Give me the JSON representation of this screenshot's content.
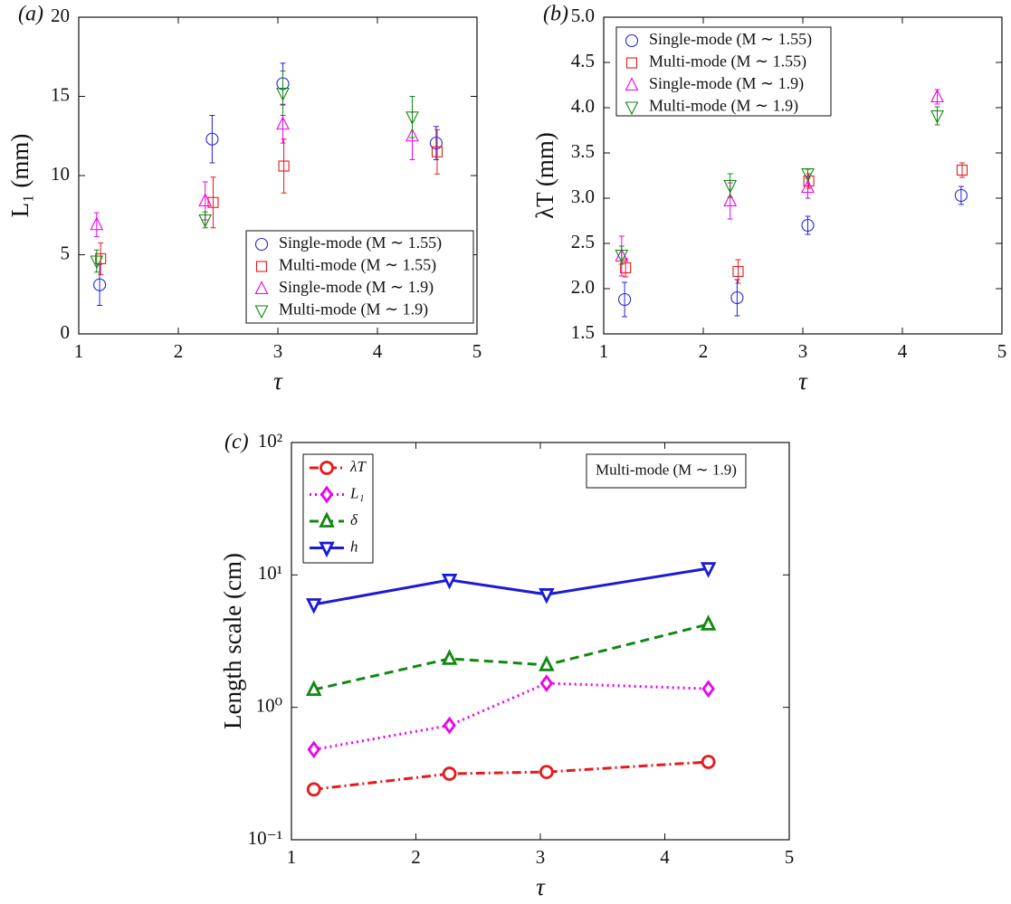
{
  "chart_data": [
    {
      "type": "scatter",
      "panel_label": "(a)",
      "xlabel": "τ",
      "ylabel": "L₁ (mm)",
      "xlim": [
        1,
        5
      ],
      "xticks": [
        1,
        2,
        3,
        4,
        5
      ],
      "ylim": [
        0,
        20
      ],
      "yticks": [
        0,
        5,
        10,
        15,
        20
      ],
      "legend": "lower right",
      "series": [
        {
          "name": "Single-mode (M ∼ 1.55)",
          "color": "#2222dd",
          "marker": "circle",
          "x": [
            1.21,
            2.34,
            3.05,
            4.59
          ],
          "values": [
            3.1,
            12.3,
            15.8,
            12.05
          ],
          "errors": [
            1.3,
            1.5,
            1.3,
            1.05
          ]
        },
        {
          "name": "Multi-mode (M ∼ 1.55)",
          "color": "#e8191c",
          "marker": "square",
          "x": [
            1.22,
            2.35,
            3.06,
            4.6
          ],
          "values": [
            4.75,
            8.3,
            10.6,
            11.5
          ],
          "errors": [
            1.0,
            1.6,
            1.7,
            1.4
          ]
        },
        {
          "name": "Single-mode (M ∼ 1.9)",
          "color": "#ee00ee",
          "marker": "triangle-up",
          "x": [
            1.18,
            2.27,
            3.05,
            4.35
          ],
          "values": [
            6.9,
            8.4,
            13.25,
            12.5
          ],
          "errors": [
            0.75,
            1.2,
            1.2,
            1.5
          ]
        },
        {
          "name": "Multi-mode (M ∼ 1.9)",
          "color": "#118811",
          "marker": "triangle-down",
          "x": [
            1.18,
            2.27,
            3.05,
            4.35
          ],
          "values": [
            4.6,
            7.2,
            15.2,
            13.7
          ],
          "errors": [
            0.7,
            0.5,
            1.4,
            1.3
          ]
        }
      ]
    },
    {
      "type": "scatter",
      "panel_label": "(b)",
      "xlabel": "τ",
      "ylabel": "λT (mm)",
      "xlim": [
        1,
        5
      ],
      "xticks": [
        1,
        2,
        3,
        4,
        5
      ],
      "ylim": [
        1.5,
        5
      ],
      "yticks": [
        1.5,
        {
          "value": 2,
          "label": "2.0"
        },
        2.5,
        {
          "value": 3,
          "label": "3.0"
        },
        3.5,
        {
          "value": 4,
          "label": "4.0"
        },
        4.5,
        {
          "value": 5,
          "label": "5.0"
        }
      ],
      "legend": "upper left",
      "series": [
        {
          "name": "Single-mode (M ∼ 1.55)",
          "color": "#2222dd",
          "marker": "circle",
          "x": [
            1.21,
            2.34,
            3.05,
            4.59
          ],
          "values": [
            1.88,
            1.9,
            2.7,
            3.03
          ],
          "errors": [
            0.19,
            0.2,
            0.1,
            0.1
          ]
        },
        {
          "name": "Multi-mode (M ∼ 1.55)",
          "color": "#e8191c",
          "marker": "square",
          "x": [
            1.22,
            2.35,
            3.06,
            4.6
          ],
          "values": [
            2.23,
            2.19,
            3.19,
            3.31
          ],
          "errors": [
            0.1,
            0.13,
            0.08,
            0.08
          ]
        },
        {
          "name": "Single-mode (M ∼ 1.9)",
          "color": "#ee00ee",
          "marker": "triangle-up",
          "x": [
            1.18,
            2.27,
            3.05,
            4.35
          ],
          "values": [
            2.36,
            2.97,
            3.12,
            4.12
          ],
          "errors": [
            0.22,
            0.2,
            0.12,
            0.08
          ]
        },
        {
          "name": "Multi-mode (M ∼ 1.9)",
          "color": "#118811",
          "marker": "triangle-down",
          "x": [
            1.18,
            2.27,
            3.05,
            4.35
          ],
          "values": [
            2.37,
            3.14,
            3.27,
            3.91
          ],
          "errors": [
            0.1,
            0.13,
            0.05,
            0.1
          ]
        }
      ]
    },
    {
      "type": "line",
      "panel_label": "(c)",
      "xlabel": "τ",
      "ylabel": "Length scale (cm)",
      "annotation": "Multi-mode (M ∼ 1.9)",
      "xlim": [
        1,
        5
      ],
      "xticks": [
        1,
        2,
        3,
        4,
        5
      ],
      "ylim": [
        0.1,
        100
      ],
      "log_y": true,
      "yticks": [
        {
          "value": 0.1,
          "label": "10⁻¹"
        },
        {
          "value": 1,
          "label": "10⁰"
        },
        {
          "value": 10,
          "label": "10¹"
        },
        {
          "value": 100,
          "label": "10²"
        }
      ],
      "legend": "upper left",
      "series": [
        {
          "name": "λT",
          "color": "#e8191c",
          "marker": "circle",
          "linestyle": "dashdot",
          "x": [
            1.18,
            2.27,
            3.05,
            4.35
          ],
          "values": [
            0.24,
            0.315,
            0.325,
            0.387
          ]
        },
        {
          "name": "L₁",
          "color": "#ee00ee",
          "marker": "diamond",
          "linestyle": "dotted",
          "x": [
            1.18,
            2.27,
            3.05,
            4.35
          ],
          "values": [
            0.48,
            0.73,
            1.52,
            1.38
          ]
        },
        {
          "name": "δ",
          "color": "#118811",
          "marker": "triangle-up",
          "linestyle": "dashed",
          "x": [
            1.18,
            2.27,
            3.05,
            4.35
          ],
          "values": [
            1.36,
            2.33,
            2.09,
            4.24
          ]
        },
        {
          "name": "h",
          "color": "#1a1ad8",
          "marker": "triangle-down",
          "linestyle": "solid",
          "x": [
            1.18,
            2.27,
            3.05,
            4.35
          ],
          "values": [
            5.98,
            9.16,
            7.12,
            11.2
          ]
        }
      ]
    }
  ]
}
